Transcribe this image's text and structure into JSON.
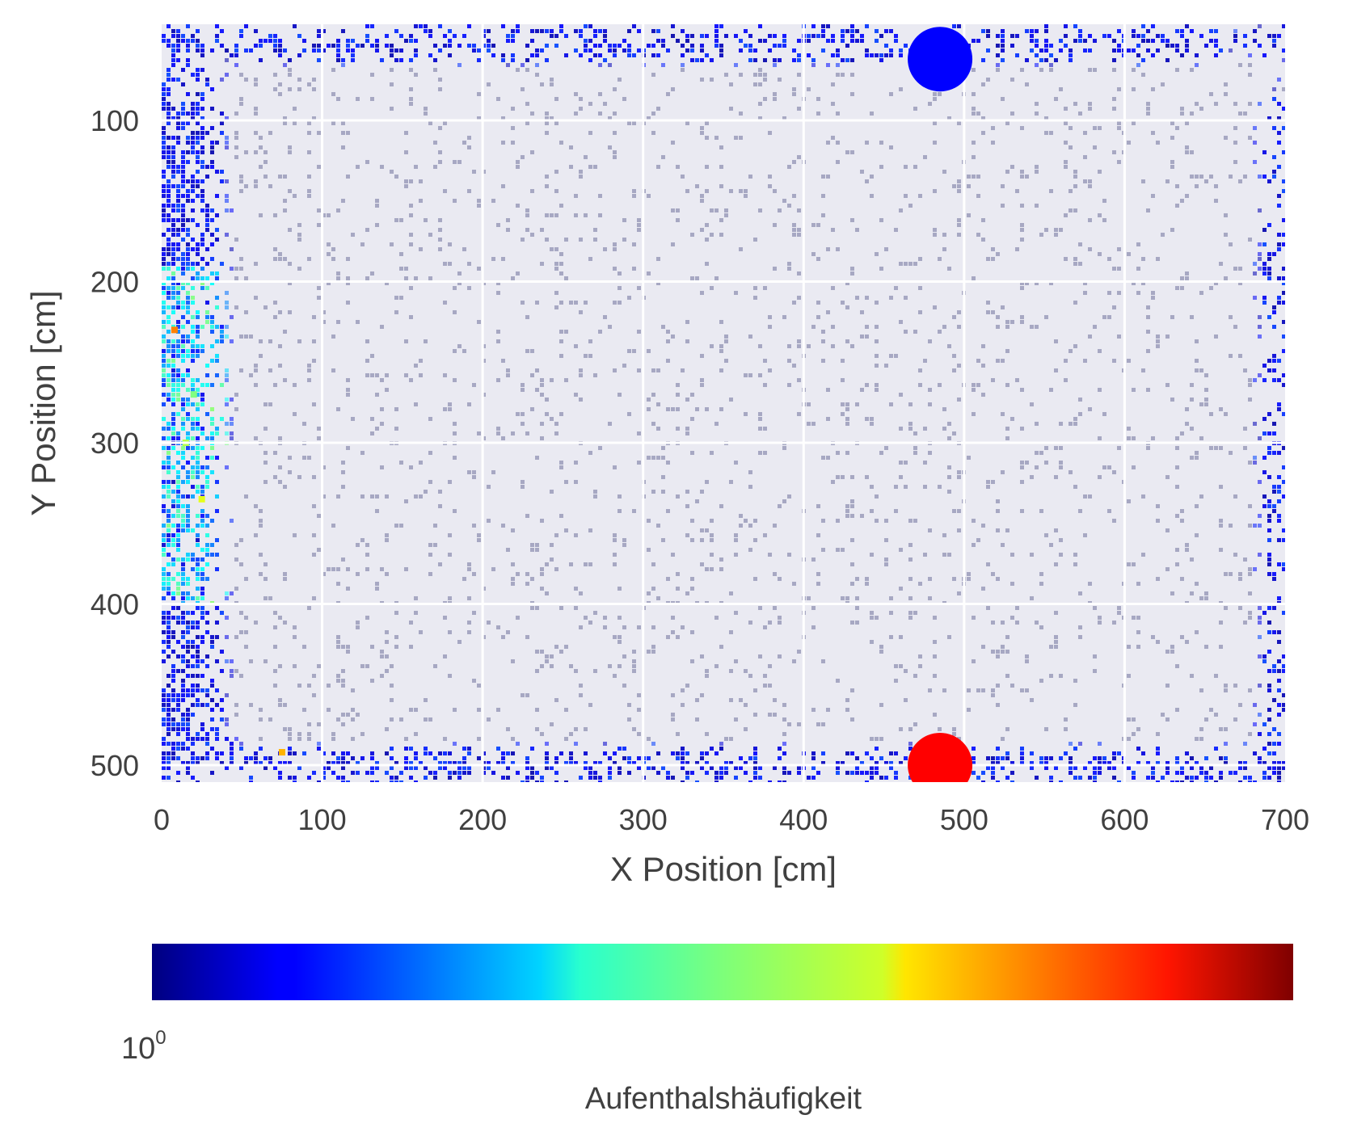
{
  "chart_data": {
    "type": "heatmap",
    "title": "",
    "xlabel": "X Position [cm]",
    "ylabel": "Y Position [cm]",
    "xlim": [
      0,
      700
    ],
    "ylim": [
      510,
      40
    ],
    "y_inverted": true,
    "x_ticks": [
      "0",
      "100",
      "200",
      "300",
      "400",
      "500",
      "600",
      "700"
    ],
    "x_tick_values": [
      0,
      100,
      200,
      300,
      400,
      500,
      600,
      700
    ],
    "y_ticks": [
      "100",
      "200",
      "300",
      "400",
      "500"
    ],
    "y_tick_values": [
      100,
      200,
      300,
      400,
      500
    ],
    "grid": true,
    "background": "#eaeaf2",
    "colormap": "jet",
    "colorbar": {
      "orientation": "horizontal",
      "label": "Aufenthalshäufigkeit",
      "tick_base": "10",
      "tick_exponent": "0",
      "scale": "log"
    },
    "markers": [
      {
        "x": 485,
        "y": 62,
        "color": "#0000ff"
      },
      {
        "x": 485,
        "y": 500,
        "color": "#ff0000"
      }
    ],
    "hotspots": [
      {
        "x": 15,
        "y": 300,
        "level": 0.55
      },
      {
        "x": 8,
        "y": 230,
        "level": 0.75
      },
      {
        "x": 25,
        "y": 335,
        "level": 0.6
      },
      {
        "x": 75,
        "y": 492,
        "level": 0.7
      },
      {
        "x": 20,
        "y": 270,
        "level": 0.5
      }
    ]
  }
}
